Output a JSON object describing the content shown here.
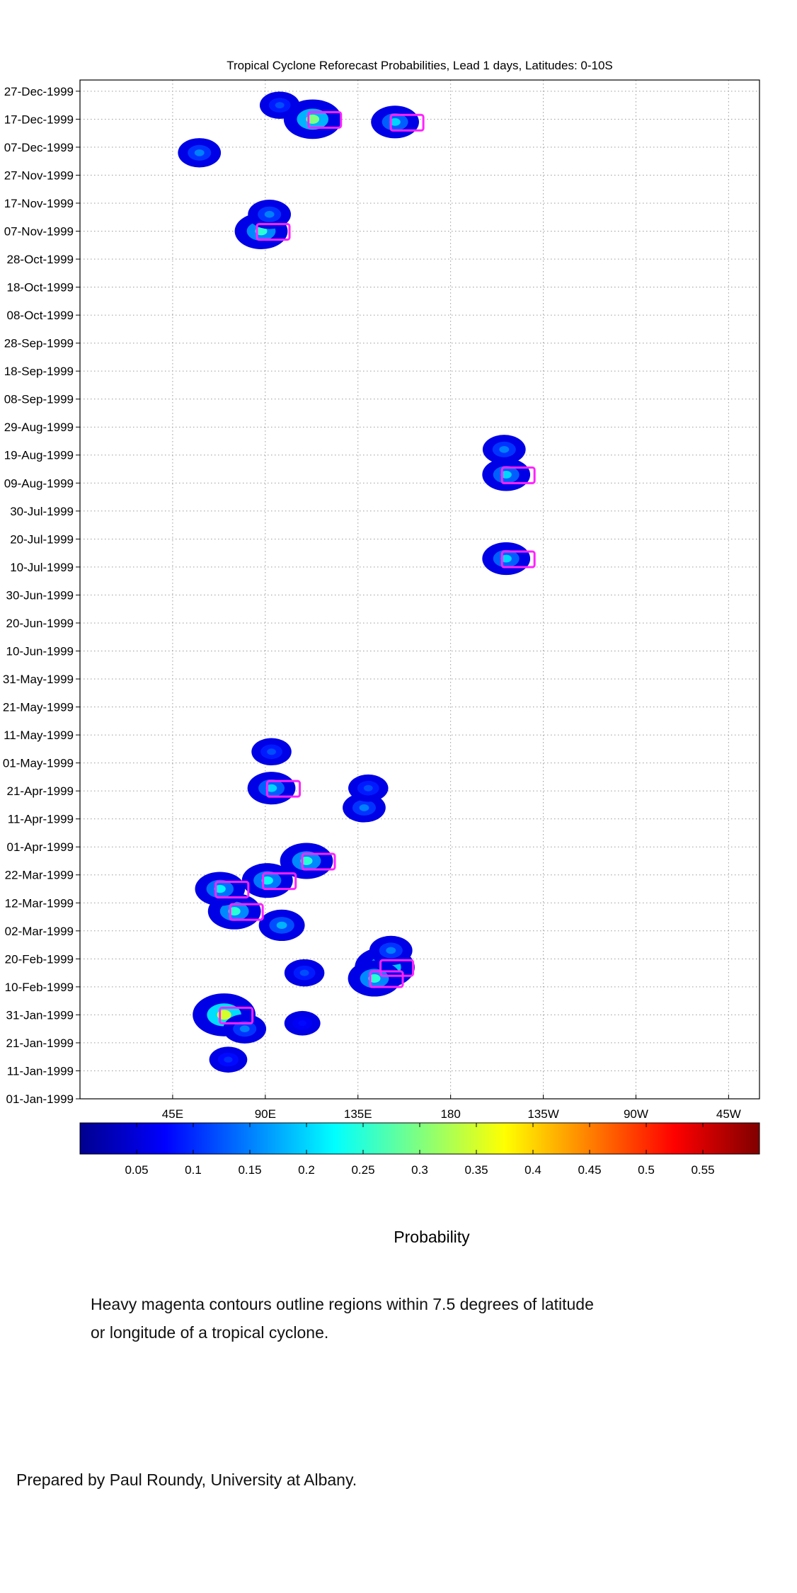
{
  "chart_data": {
    "type": "heatmap",
    "title": "Tropical Cyclone Reforecast Probabilities, Lead 1 days, Latitudes: 0-10S",
    "xlabel": "",
    "ylabel": "",
    "x_ticks": [
      "45E",
      "90E",
      "135E",
      "180",
      "135W",
      "90W",
      "45W"
    ],
    "x_tick_values": [
      45,
      90,
      135,
      180,
      225,
      270,
      315
    ],
    "xlim": [
      0,
      330
    ],
    "y_ticks": [
      "01-Jan-1999",
      "11-Jan-1999",
      "21-Jan-1999",
      "31-Jan-1999",
      "10-Feb-1999",
      "20-Feb-1999",
      "02-Mar-1999",
      "12-Mar-1999",
      "22-Mar-1999",
      "01-Apr-1999",
      "11-Apr-1999",
      "21-Apr-1999",
      "01-May-1999",
      "11-May-1999",
      "21-May-1999",
      "31-May-1999",
      "10-Jun-1999",
      "20-Jun-1999",
      "30-Jun-1999",
      "10-Jul-1999",
      "20-Jul-1999",
      "30-Jul-1999",
      "09-Aug-1999",
      "19-Aug-1999",
      "29-Aug-1999",
      "08-Sep-1999",
      "18-Sep-1999",
      "28-Sep-1999",
      "08-Oct-1999",
      "18-Oct-1999",
      "28-Oct-1999",
      "07-Nov-1999",
      "17-Nov-1999",
      "27-Nov-1999",
      "07-Dec-1999",
      "17-Dec-1999",
      "27-Dec-1999"
    ],
    "ylim": [
      "01-Jan-1999",
      "31-Dec-1999"
    ],
    "grid": true,
    "probability_regions": [
      {
        "date": "31-Jan-1999",
        "lon": 70,
        "p": 0.35
      },
      {
        "date": "26-Jan-1999",
        "lon": 80,
        "p": 0.15
      },
      {
        "date": "15-Jan-1999",
        "lon": 72,
        "p": 0.1
      },
      {
        "date": "28-Jan-1999",
        "lon": 108,
        "p": 0.08
      },
      {
        "date": "17-Feb-1999",
        "lon": 148,
        "p": 0.32
      },
      {
        "date": "13-Feb-1999",
        "lon": 143,
        "p": 0.25
      },
      {
        "date": "23-Feb-1999",
        "lon": 151,
        "p": 0.15
      },
      {
        "date": "15-Feb-1999",
        "lon": 109,
        "p": 0.12
      },
      {
        "date": "09-Mar-1999",
        "lon": 75,
        "p": 0.25
      },
      {
        "date": "17-Mar-1999",
        "lon": 68,
        "p": 0.22
      },
      {
        "date": "20-Mar-1999",
        "lon": 91,
        "p": 0.23
      },
      {
        "date": "27-Mar-1999",
        "lon": 110,
        "p": 0.25
      },
      {
        "date": "04-Mar-1999",
        "lon": 98,
        "p": 0.18
      },
      {
        "date": "22-Apr-1999",
        "lon": 93,
        "p": 0.2
      },
      {
        "date": "15-Apr-1999",
        "lon": 138,
        "p": 0.15
      },
      {
        "date": "22-Apr-1999",
        "lon": 140,
        "p": 0.12
      },
      {
        "date": "05-May-1999",
        "lon": 93,
        "p": 0.12
      },
      {
        "date": "07-Nov-1999",
        "lon": 88,
        "p": 0.25
      },
      {
        "date": "13-Nov-1999",
        "lon": 92,
        "p": 0.15
      },
      {
        "date": "17-Dec-1999",
        "lon": 113,
        "p": 0.3
      },
      {
        "date": "05-Dec-1999",
        "lon": 58,
        "p": 0.15
      },
      {
        "date": "16-Dec-1999",
        "lon": 153,
        "p": 0.2
      },
      {
        "date": "22-Dec-1999",
        "lon": 97,
        "p": 0.12
      },
      {
        "date": "12-Aug-1999",
        "lon": 207,
        "p": 0.2
      },
      {
        "date": "21-Aug-1999",
        "lon": 206,
        "p": 0.15
      },
      {
        "date": "13-Jul-1999",
        "lon": 207,
        "p": 0.2
      }
    ],
    "colorbar": {
      "label": "Probability",
      "range": [
        0,
        0.6
      ],
      "tick_labels": [
        "0.05",
        "0.1",
        "0.15",
        "0.2",
        "0.25",
        "0.3",
        "0.35",
        "0.4",
        "0.45",
        "0.5",
        "0.55"
      ],
      "tick_values": [
        0.05,
        0.1,
        0.15,
        0.2,
        0.25,
        0.3,
        0.35,
        0.4,
        0.45,
        0.5,
        0.55
      ],
      "colormap": "jet"
    },
    "contour_color": "#ff22ff"
  },
  "notes": {
    "line1": "Heavy magenta contours outline regions within 7.5 degrees of latitude",
    "line2": "or longitude of a tropical cyclone.",
    "credit": "Prepared by Paul Roundy, University at Albany."
  }
}
